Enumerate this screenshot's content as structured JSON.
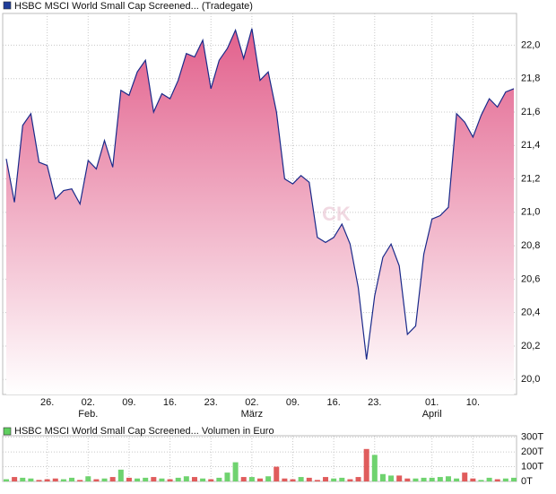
{
  "chart_data": [
    {
      "type": "area",
      "title": "HSBC MSCI World Small Cap Screened... (Tradegate)",
      "watermark": "CK",
      "legend_color": "#1f3d99",
      "line_color": "#1a2a8a",
      "fill_top": "#e2608c",
      "fill_bottom": "#ffffff",
      "categories": [
        null,
        null,
        null,
        null,
        null,
        "26.",
        null,
        null,
        null,
        null,
        "02.",
        null,
        null,
        null,
        null,
        "09.",
        null,
        null,
        null,
        null,
        "16.",
        null,
        null,
        null,
        null,
        "23.",
        null,
        null,
        null,
        null,
        "02.",
        null,
        null,
        null,
        null,
        "09.",
        null,
        null,
        null,
        null,
        "16.",
        null,
        null,
        null,
        null,
        "23.",
        null,
        null,
        null,
        null,
        null,
        null,
        "01.",
        null,
        null,
        null,
        null,
        "10.",
        null,
        null,
        null,
        null,
        null
      ],
      "month_ticks": [
        {
          "value": 10,
          "label": "Feb."
        },
        {
          "value": 30,
          "label": "März"
        },
        {
          "value": 52,
          "label": "April"
        }
      ],
      "series": [
        {
          "name": "HSBC MSCI World Small Cap Screened... (Tradegate)",
          "values": [
            21.32,
            21.06,
            21.52,
            21.59,
            21.3,
            21.28,
            21.08,
            21.13,
            21.14,
            21.05,
            21.31,
            21.26,
            21.43,
            21.27,
            21.73,
            21.7,
            21.84,
            21.91,
            21.6,
            21.71,
            21.68,
            21.79,
            21.95,
            21.93,
            22.03,
            21.74,
            21.91,
            21.98,
            22.09,
            21.92,
            22.1,
            21.79,
            21.84,
            21.6,
            21.2,
            21.17,
            21.22,
            21.18,
            20.85,
            20.82,
            20.85,
            20.93,
            20.81,
            20.55,
            20.12,
            20.5,
            20.73,
            20.81,
            20.68,
            20.27,
            20.32,
            20.75,
            20.96,
            20.98,
            21.03,
            21.59,
            21.54,
            21.45,
            21.58,
            21.68,
            21.63,
            21.72,
            21.74
          ]
        }
      ],
      "ylim": [
        19.91,
        22.19
      ],
      "yticks": [
        {
          "value": 20.0,
          "label": "20,0"
        },
        {
          "value": 20.2,
          "label": "20,2"
        },
        {
          "value": 20.4,
          "label": "20,4"
        },
        {
          "value": 20.6,
          "label": "20,6"
        },
        {
          "value": 20.8,
          "label": "20,8"
        },
        {
          "value": 21.0,
          "label": "21,0"
        },
        {
          "value": 21.2,
          "label": "21,2"
        },
        {
          "value": 21.4,
          "label": "21,4"
        },
        {
          "value": 21.6,
          "label": "21,6"
        },
        {
          "value": 21.8,
          "label": "21,8"
        },
        {
          "value": 22.0,
          "label": "22,0"
        }
      ],
      "grid": true
    },
    {
      "type": "bar",
      "title": "HSBC MSCI World Small Cap Screened... Volumen in Euro",
      "legend_color": "#5fcf5f",
      "series": [
        {
          "name": "HSBC MSCI World Small Cap Screened... Volumen in Euro",
          "values": [
            15,
            30,
            25,
            20,
            10,
            15,
            20,
            15,
            25,
            10,
            35,
            15,
            20,
            30,
            80,
            25,
            20,
            25,
            30,
            20,
            15,
            25,
            35,
            30,
            20,
            15,
            25,
            60,
            130,
            30,
            30,
            20,
            35,
            100,
            20,
            15,
            30,
            25,
            10,
            30,
            20,
            25,
            15,
            30,
            220,
            180,
            50,
            40,
            40,
            20,
            20,
            25,
            25,
            30,
            35,
            20,
            60,
            20,
            10,
            25,
            15,
            20,
            25
          ],
          "colors": [
            "#6fd36f",
            "#e05c5c",
            "#6fd36f",
            "#6fd36f",
            "#e05c5c",
            "#e05c5c",
            "#e05c5c",
            "#6fd36f",
            "#6fd36f",
            "#e05c5c",
            "#6fd36f",
            "#e05c5c",
            "#6fd36f",
            "#e05c5c",
            "#6fd36f",
            "#e05c5c",
            "#6fd36f",
            "#6fd36f",
            "#e05c5c",
            "#6fd36f",
            "#e05c5c",
            "#6fd36f",
            "#6fd36f",
            "#e05c5c",
            "#6fd36f",
            "#e05c5c",
            "#6fd36f",
            "#6fd36f",
            "#6fd36f",
            "#e05c5c",
            "#6fd36f",
            "#e05c5c",
            "#6fd36f",
            "#e05c5c",
            "#e05c5c",
            "#e05c5c",
            "#6fd36f",
            "#e05c5c",
            "#e05c5c",
            "#e05c5c",
            "#6fd36f",
            "#6fd36f",
            "#e05c5c",
            "#e05c5c",
            "#e05c5c",
            "#6fd36f",
            "#6fd36f",
            "#6fd36f",
            "#e05c5c",
            "#e05c5c",
            "#6fd36f",
            "#6fd36f",
            "#6fd36f",
            "#6fd36f",
            "#6fd36f",
            "#6fd36f",
            "#e05c5c",
            "#e05c5c",
            "#6fd36f",
            "#6fd36f",
            "#e05c5c",
            "#6fd36f",
            "#6fd36f"
          ]
        }
      ],
      "ylim": [
        0,
        310
      ],
      "yticks": [
        {
          "value": 0,
          "label": "0T"
        },
        {
          "value": 100,
          "label": "100T"
        },
        {
          "value": 200,
          "label": "200T"
        },
        {
          "value": 300,
          "label": "300T"
        }
      ],
      "grid": true
    }
  ]
}
